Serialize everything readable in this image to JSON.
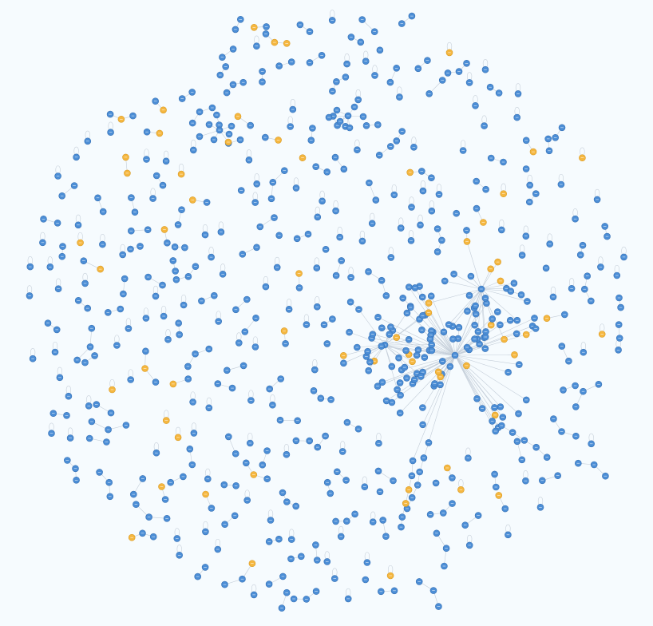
{
  "graph": {
    "colors": {
      "background": "#f6fbfe",
      "node_primary": "#4c8ed6",
      "node_secondary": "#f5b740",
      "edge": "#c3cdd8"
    },
    "node_types": [
      "primary",
      "secondary"
    ],
    "labels_visible": false
  }
}
